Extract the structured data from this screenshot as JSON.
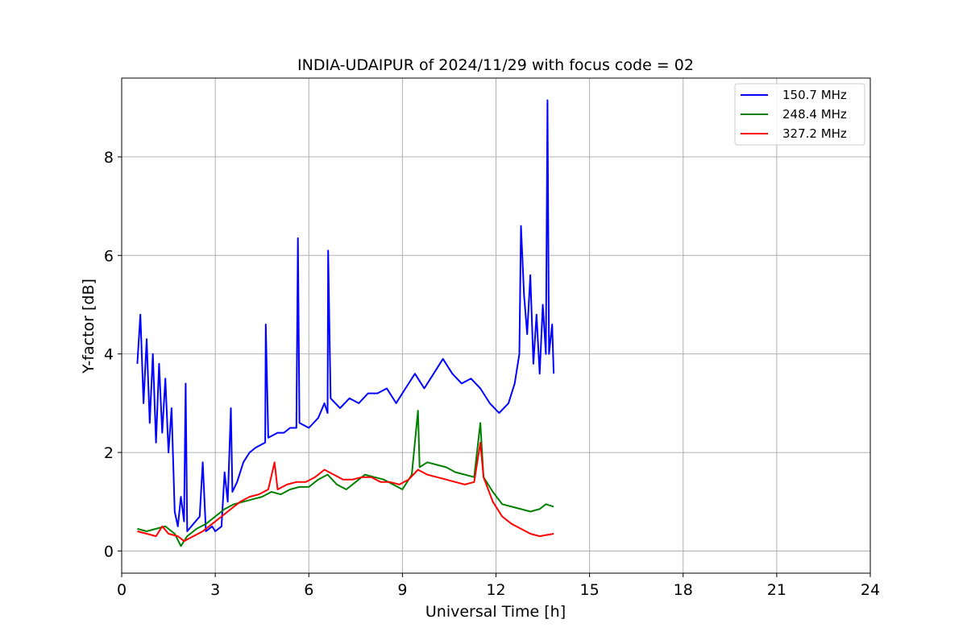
{
  "chart_data": {
    "type": "line",
    "title": "INDIA-UDAIPUR of 2024/11/29 with focus code = 02",
    "xlabel": "Universal Time [h]",
    "ylabel": "Y-factor [dB]",
    "xlim": [
      0,
      24
    ],
    "ylim": [
      -0.45,
      9.6
    ],
    "xticks": [
      0,
      3,
      6,
      9,
      12,
      15,
      18,
      21,
      24
    ],
    "yticks": [
      0,
      2,
      4,
      6,
      8
    ],
    "grid": true,
    "legend_position": "top-right",
    "series": [
      {
        "name": "150.7 MHz",
        "color": "#0000ff",
        "points": [
          [
            0.5,
            3.8
          ],
          [
            0.6,
            4.8
          ],
          [
            0.7,
            3.0
          ],
          [
            0.8,
            4.3
          ],
          [
            0.9,
            2.6
          ],
          [
            1.0,
            4.0
          ],
          [
            1.1,
            2.2
          ],
          [
            1.2,
            3.8
          ],
          [
            1.3,
            2.4
          ],
          [
            1.4,
            3.5
          ],
          [
            1.5,
            2.0
          ],
          [
            1.6,
            2.9
          ],
          [
            1.7,
            0.8
          ],
          [
            1.8,
            0.5
          ],
          [
            1.9,
            1.1
          ],
          [
            2.0,
            0.6
          ],
          [
            2.05,
            3.4
          ],
          [
            2.1,
            0.4
          ],
          [
            2.3,
            0.55
          ],
          [
            2.5,
            0.7
          ],
          [
            2.6,
            1.8
          ],
          [
            2.7,
            0.4
          ],
          [
            2.9,
            0.5
          ],
          [
            3.0,
            0.4
          ],
          [
            3.2,
            0.5
          ],
          [
            3.3,
            1.6
          ],
          [
            3.4,
            1.0
          ],
          [
            3.5,
            2.9
          ],
          [
            3.55,
            1.2
          ],
          [
            3.7,
            1.4
          ],
          [
            3.9,
            1.8
          ],
          [
            4.1,
            2.0
          ],
          [
            4.3,
            2.1
          ],
          [
            4.6,
            2.2
          ],
          [
            4.62,
            4.6
          ],
          [
            4.7,
            2.3
          ],
          [
            5.0,
            2.4
          ],
          [
            5.2,
            2.4
          ],
          [
            5.4,
            2.5
          ],
          [
            5.6,
            2.5
          ],
          [
            5.65,
            6.35
          ],
          [
            5.7,
            2.6
          ],
          [
            6.0,
            2.5
          ],
          [
            6.3,
            2.7
          ],
          [
            6.5,
            3.0
          ],
          [
            6.6,
            2.8
          ],
          [
            6.62,
            6.1
          ],
          [
            6.7,
            3.1
          ],
          [
            7.0,
            2.9
          ],
          [
            7.3,
            3.1
          ],
          [
            7.6,
            3.0
          ],
          [
            7.9,
            3.2
          ],
          [
            8.2,
            3.2
          ],
          [
            8.5,
            3.3
          ],
          [
            8.8,
            3.0
          ],
          [
            9.1,
            3.3
          ],
          [
            9.4,
            3.6
          ],
          [
            9.7,
            3.3
          ],
          [
            10.0,
            3.6
          ],
          [
            10.3,
            3.9
          ],
          [
            10.6,
            3.6
          ],
          [
            10.9,
            3.4
          ],
          [
            11.2,
            3.5
          ],
          [
            11.5,
            3.3
          ],
          [
            11.8,
            3.0
          ],
          [
            12.1,
            2.8
          ],
          [
            12.4,
            3.0
          ],
          [
            12.6,
            3.4
          ],
          [
            12.75,
            4.0
          ],
          [
            12.8,
            6.6
          ],
          [
            12.9,
            5.2
          ],
          [
            13.0,
            4.4
          ],
          [
            13.1,
            5.6
          ],
          [
            13.2,
            3.8
          ],
          [
            13.3,
            4.8
          ],
          [
            13.4,
            3.6
          ],
          [
            13.5,
            5.0
          ],
          [
            13.6,
            4.0
          ],
          [
            13.65,
            9.15
          ],
          [
            13.7,
            4.0
          ],
          [
            13.8,
            4.6
          ],
          [
            13.85,
            3.6
          ]
        ]
      },
      {
        "name": "248.4 MHz",
        "color": "#008000",
        "points": [
          [
            0.5,
            0.45
          ],
          [
            0.8,
            0.4
          ],
          [
            1.1,
            0.45
          ],
          [
            1.4,
            0.5
          ],
          [
            1.7,
            0.35
          ],
          [
            1.9,
            0.1
          ],
          [
            2.1,
            0.3
          ],
          [
            2.4,
            0.45
          ],
          [
            2.7,
            0.55
          ],
          [
            3.0,
            0.7
          ],
          [
            3.3,
            0.85
          ],
          [
            3.6,
            0.95
          ],
          [
            3.9,
            1.0
          ],
          [
            4.2,
            1.05
          ],
          [
            4.5,
            1.1
          ],
          [
            4.8,
            1.2
          ],
          [
            5.1,
            1.15
          ],
          [
            5.4,
            1.25
          ],
          [
            5.7,
            1.3
          ],
          [
            6.0,
            1.3
          ],
          [
            6.3,
            1.45
          ],
          [
            6.6,
            1.55
          ],
          [
            6.9,
            1.35
          ],
          [
            7.2,
            1.25
          ],
          [
            7.5,
            1.4
          ],
          [
            7.8,
            1.55
          ],
          [
            8.1,
            1.5
          ],
          [
            8.4,
            1.45
          ],
          [
            8.7,
            1.35
          ],
          [
            9.0,
            1.25
          ],
          [
            9.3,
            1.55
          ],
          [
            9.5,
            2.85
          ],
          [
            9.55,
            1.7
          ],
          [
            9.8,
            1.8
          ],
          [
            10.1,
            1.75
          ],
          [
            10.4,
            1.7
          ],
          [
            10.7,
            1.6
          ],
          [
            11.0,
            1.55
          ],
          [
            11.3,
            1.5
          ],
          [
            11.5,
            2.6
          ],
          [
            11.6,
            1.5
          ],
          [
            11.9,
            1.2
          ],
          [
            12.2,
            0.95
          ],
          [
            12.5,
            0.9
          ],
          [
            12.8,
            0.85
          ],
          [
            13.1,
            0.8
          ],
          [
            13.4,
            0.85
          ],
          [
            13.6,
            0.95
          ],
          [
            13.85,
            0.9
          ]
        ]
      },
      {
        "name": "327.2 MHz",
        "color": "#ff0000",
        "points": [
          [
            0.5,
            0.4
          ],
          [
            0.8,
            0.35
          ],
          [
            1.1,
            0.3
          ],
          [
            1.3,
            0.5
          ],
          [
            1.5,
            0.35
          ],
          [
            1.8,
            0.3
          ],
          [
            2.0,
            0.2
          ],
          [
            2.3,
            0.3
          ],
          [
            2.6,
            0.4
          ],
          [
            2.9,
            0.55
          ],
          [
            3.2,
            0.7
          ],
          [
            3.5,
            0.85
          ],
          [
            3.8,
            1.0
          ],
          [
            4.1,
            1.1
          ],
          [
            4.4,
            1.15
          ],
          [
            4.7,
            1.25
          ],
          [
            4.9,
            1.8
          ],
          [
            5.0,
            1.25
          ],
          [
            5.3,
            1.35
          ],
          [
            5.6,
            1.4
          ],
          [
            5.9,
            1.4
          ],
          [
            6.2,
            1.5
          ],
          [
            6.5,
            1.65
          ],
          [
            6.8,
            1.55
          ],
          [
            7.1,
            1.45
          ],
          [
            7.4,
            1.45
          ],
          [
            7.7,
            1.5
          ],
          [
            8.0,
            1.5
          ],
          [
            8.3,
            1.4
          ],
          [
            8.6,
            1.4
          ],
          [
            8.9,
            1.35
          ],
          [
            9.2,
            1.45
          ],
          [
            9.5,
            1.65
          ],
          [
            9.8,
            1.55
          ],
          [
            10.1,
            1.5
          ],
          [
            10.4,
            1.45
          ],
          [
            10.7,
            1.4
          ],
          [
            11.0,
            1.35
          ],
          [
            11.3,
            1.4
          ],
          [
            11.5,
            2.2
          ],
          [
            11.6,
            1.5
          ],
          [
            11.9,
            1.0
          ],
          [
            12.2,
            0.7
          ],
          [
            12.5,
            0.55
          ],
          [
            12.8,
            0.45
          ],
          [
            13.1,
            0.35
          ],
          [
            13.4,
            0.3
          ],
          [
            13.85,
            0.35
          ]
        ]
      }
    ]
  }
}
